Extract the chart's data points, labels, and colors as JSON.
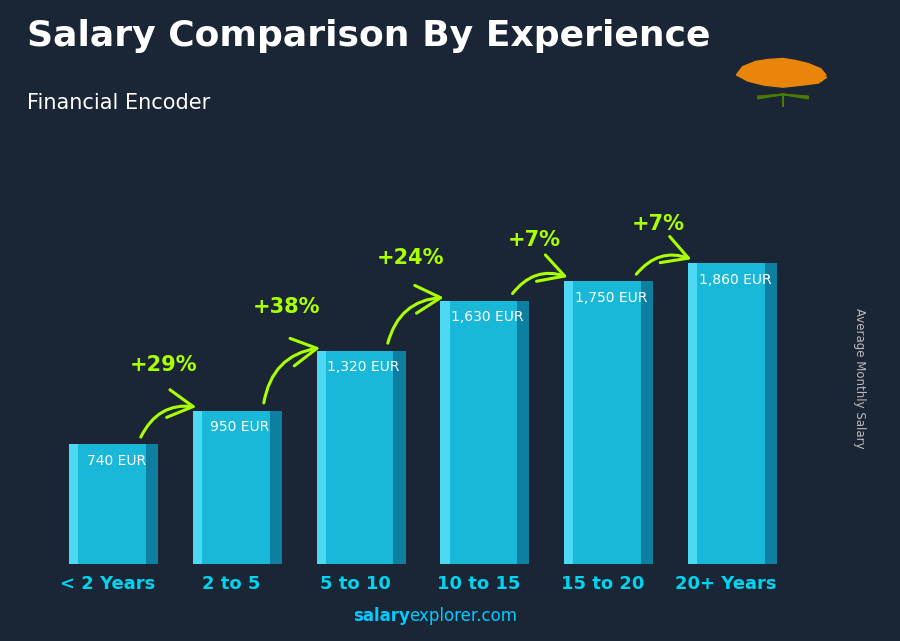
{
  "title": "Salary Comparison By Experience",
  "subtitle": "Financial Encoder",
  "ylabel": "Average Monthly Salary",
  "footer_bold": "salary",
  "footer_normal": "explorer.com",
  "categories": [
    "< 2 Years",
    "2 to 5",
    "5 to 10",
    "10 to 15",
    "15 to 20",
    "20+ Years"
  ],
  "values": [
    740,
    950,
    1320,
    1630,
    1750,
    1860
  ],
  "value_labels": [
    "740 EUR",
    "950 EUR",
    "1,320 EUR",
    "1,630 EUR",
    "1,750 EUR",
    "1,860 EUR"
  ],
  "pct_labels": [
    "+29%",
    "+38%",
    "+24%",
    "+7%",
    "+7%"
  ],
  "bar_front": "#1ab8d8",
  "bar_right": "#0e7fa0",
  "bar_top": "#4dd8f0",
  "bar_highlight": "#60e8ff",
  "pct_color": "#aaff00",
  "title_color": "#ffffff",
  "subtitle_color": "#ffffff",
  "label_color": "#ffffff",
  "footer_color": "#00ccff",
  "cat_color": "#00d4ee",
  "ylabel_color": "#bbbbbb",
  "bar_width": 0.62,
  "bar_depth": 0.1,
  "ylim": [
    0,
    2300
  ],
  "bg_dark": "#1a2535",
  "footer_size": 12,
  "title_size": 26,
  "subtitle_size": 15,
  "cat_size": 13,
  "val_size": 10,
  "pct_size": 15
}
